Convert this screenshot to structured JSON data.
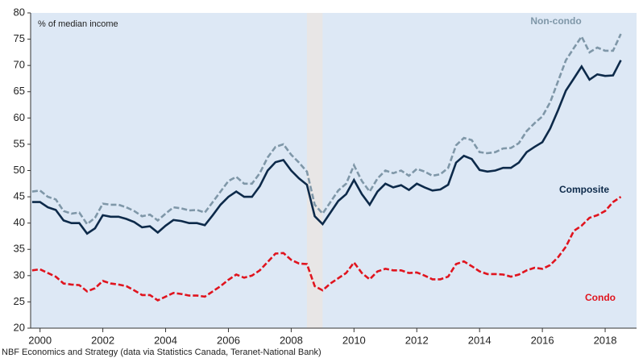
{
  "chart_data": {
    "type": "line",
    "annotation": "% of median income",
    "source": "NBF Economics and Strategy (data via Statistics Canada, Teranet-National Bank)",
    "x": [
      1999.75,
      2000,
      2000.25,
      2000.5,
      2000.75,
      2001,
      2001.25,
      2001.5,
      2001.75,
      2002,
      2002.25,
      2002.5,
      2002.75,
      2003,
      2003.25,
      2003.5,
      2003.75,
      2004,
      2004.25,
      2004.5,
      2004.75,
      2005,
      2005.25,
      2005.5,
      2005.75,
      2006,
      2006.25,
      2006.5,
      2006.75,
      2007,
      2007.25,
      2007.5,
      2007.75,
      2008,
      2008.25,
      2008.5,
      2008.75,
      2009,
      2009.25,
      2009.5,
      2009.75,
      2010,
      2010.25,
      2010.5,
      2010.75,
      2011,
      2011.25,
      2011.5,
      2011.75,
      2012,
      2012.25,
      2012.5,
      2012.75,
      2013,
      2013.25,
      2013.5,
      2013.75,
      2014,
      2014.25,
      2014.5,
      2014.75,
      2015,
      2015.25,
      2015.5,
      2015.75,
      2016,
      2016.25,
      2016.5,
      2016.75,
      2017,
      2017.25,
      2017.5,
      2017.75,
      2018,
      2018.25,
      2018.5
    ],
    "series": [
      {
        "name": "Non-condo",
        "color": "#7f97a8",
        "dashed": true,
        "values": [
          46,
          46.2,
          45,
          44.5,
          42.3,
          41.8,
          42,
          39.8,
          41,
          43.7,
          43.5,
          43.5,
          43,
          42.3,
          41.3,
          41.6,
          40.5,
          41.8,
          43,
          42.8,
          42.4,
          42.5,
          42,
          44,
          46,
          48,
          48.8,
          47.5,
          47.5,
          49.5,
          52.5,
          54.5,
          55,
          53,
          51.5,
          49.8,
          43.5,
          41.8,
          44,
          46.2,
          47.5,
          51,
          48,
          46,
          48.5,
          50,
          49.5,
          50,
          49,
          50.3,
          49.8,
          49,
          49.3,
          50.5,
          54.8,
          56.2,
          55.8,
          53.5,
          53.3,
          53.5,
          54.2,
          54.3,
          55.2,
          57.5,
          59,
          60.3,
          63,
          67,
          71,
          73.3,
          75.5,
          72.5,
          73.4,
          72.8,
          72.8,
          76
        ]
      },
      {
        "name": "Composite",
        "color": "#0d2a4a",
        "dashed": false,
        "values": [
          44,
          44,
          43,
          42.5,
          40.5,
          40,
          40,
          38,
          39,
          41.5,
          41.2,
          41.2,
          40.8,
          40.2,
          39.2,
          39.4,
          38.2,
          39.5,
          40.6,
          40.4,
          40,
          40,
          39.6,
          41.5,
          43.5,
          45,
          46,
          45,
          45,
          47,
          50,
          51.6,
          52,
          50,
          48.5,
          47.3,
          41.3,
          39.8,
          42,
          44.2,
          45.5,
          48.2,
          45.5,
          43.5,
          46,
          47.5,
          46.8,
          47.2,
          46.3,
          47.5,
          46.8,
          46.2,
          46.4,
          47.3,
          51.5,
          52.8,
          52.2,
          50.1,
          49.8,
          50,
          50.5,
          50.5,
          51.5,
          53.5,
          54.5,
          55.4,
          58,
          61.5,
          65.2,
          67.5,
          69.8,
          67.3,
          68.3,
          68,
          68.1,
          71
        ]
      },
      {
        "name": "Condo",
        "color": "#e0141e",
        "dashed": true,
        "values": [
          31,
          31.2,
          30.5,
          29.8,
          28.5,
          28.3,
          28.2,
          27,
          27.6,
          29,
          28.5,
          28.3,
          28,
          27.2,
          26.3,
          26.3,
          25.3,
          26,
          26.7,
          26.5,
          26.2,
          26.2,
          26,
          27,
          28,
          29.2,
          30.2,
          29.6,
          30,
          31,
          32.6,
          34.2,
          34.3,
          33,
          32.3,
          32.2,
          28,
          27.2,
          28.5,
          29.5,
          30.5,
          32.5,
          30.5,
          29.3,
          30.8,
          31.3,
          31,
          31,
          30.5,
          30.6,
          30,
          29.3,
          29.3,
          29.8,
          32.2,
          32.7,
          31.8,
          30.8,
          30.3,
          30.3,
          30.2,
          29.8,
          30.2,
          31,
          31.5,
          31.3,
          32,
          33.5,
          35.5,
          38.5,
          39.5,
          41,
          41.5,
          42.3,
          44,
          45
        ]
      }
    ],
    "shaded_x": [
      2008.5,
      2009
    ],
    "xlim": [
      1999.7,
      2019.0
    ],
    "xticks": [
      2000,
      2002,
      2004,
      2006,
      2008,
      2010,
      2012,
      2014,
      2016,
      2018
    ],
    "ylim": [
      20,
      80
    ],
    "yticks": [
      20,
      25,
      30,
      35,
      40,
      45,
      50,
      55,
      60,
      65,
      70,
      75,
      80
    ]
  }
}
